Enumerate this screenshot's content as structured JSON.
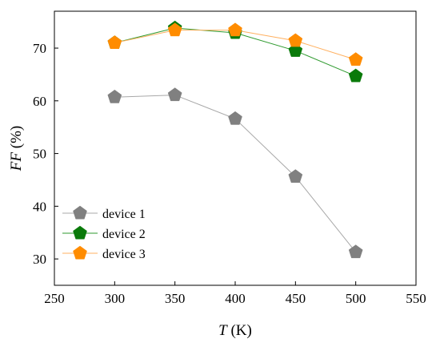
{
  "chart_data": {
    "type": "line",
    "xlabel": {
      "var": "T",
      "unit": " (K)"
    },
    "ylabel": {
      "var": "FF",
      "unit": " (%)"
    },
    "xlim": [
      250,
      550
    ],
    "ylim": [
      25,
      77
    ],
    "xticks": [
      250,
      300,
      350,
      400,
      450,
      500,
      550
    ],
    "yticks": [
      30,
      40,
      50,
      60,
      70
    ],
    "xtick_labels": [
      "250",
      "300",
      "350",
      "400",
      "450",
      "500",
      "550"
    ],
    "ytick_labels": [
      "30",
      "40",
      "50",
      "60",
      "70"
    ],
    "grid": false,
    "legend_position": "bottom-left",
    "x": [
      300,
      350,
      400,
      450,
      500
    ],
    "series": [
      {
        "name": "device 1",
        "marker_color": "#808080",
        "line_color": "#a8a8a8",
        "values": [
          60.7,
          61.1,
          56.6,
          45.6,
          31.3
        ]
      },
      {
        "name": "device 2",
        "marker_color": "#0a7a0a",
        "line_color": "#2e9a2e",
        "values": [
          71.0,
          73.8,
          72.9,
          69.5,
          64.7
        ]
      },
      {
        "name": "device 3",
        "marker_color": "#ff8c00",
        "line_color": "#ffb060",
        "values": [
          71.0,
          73.4,
          73.4,
          71.4,
          67.8
        ]
      }
    ]
  }
}
